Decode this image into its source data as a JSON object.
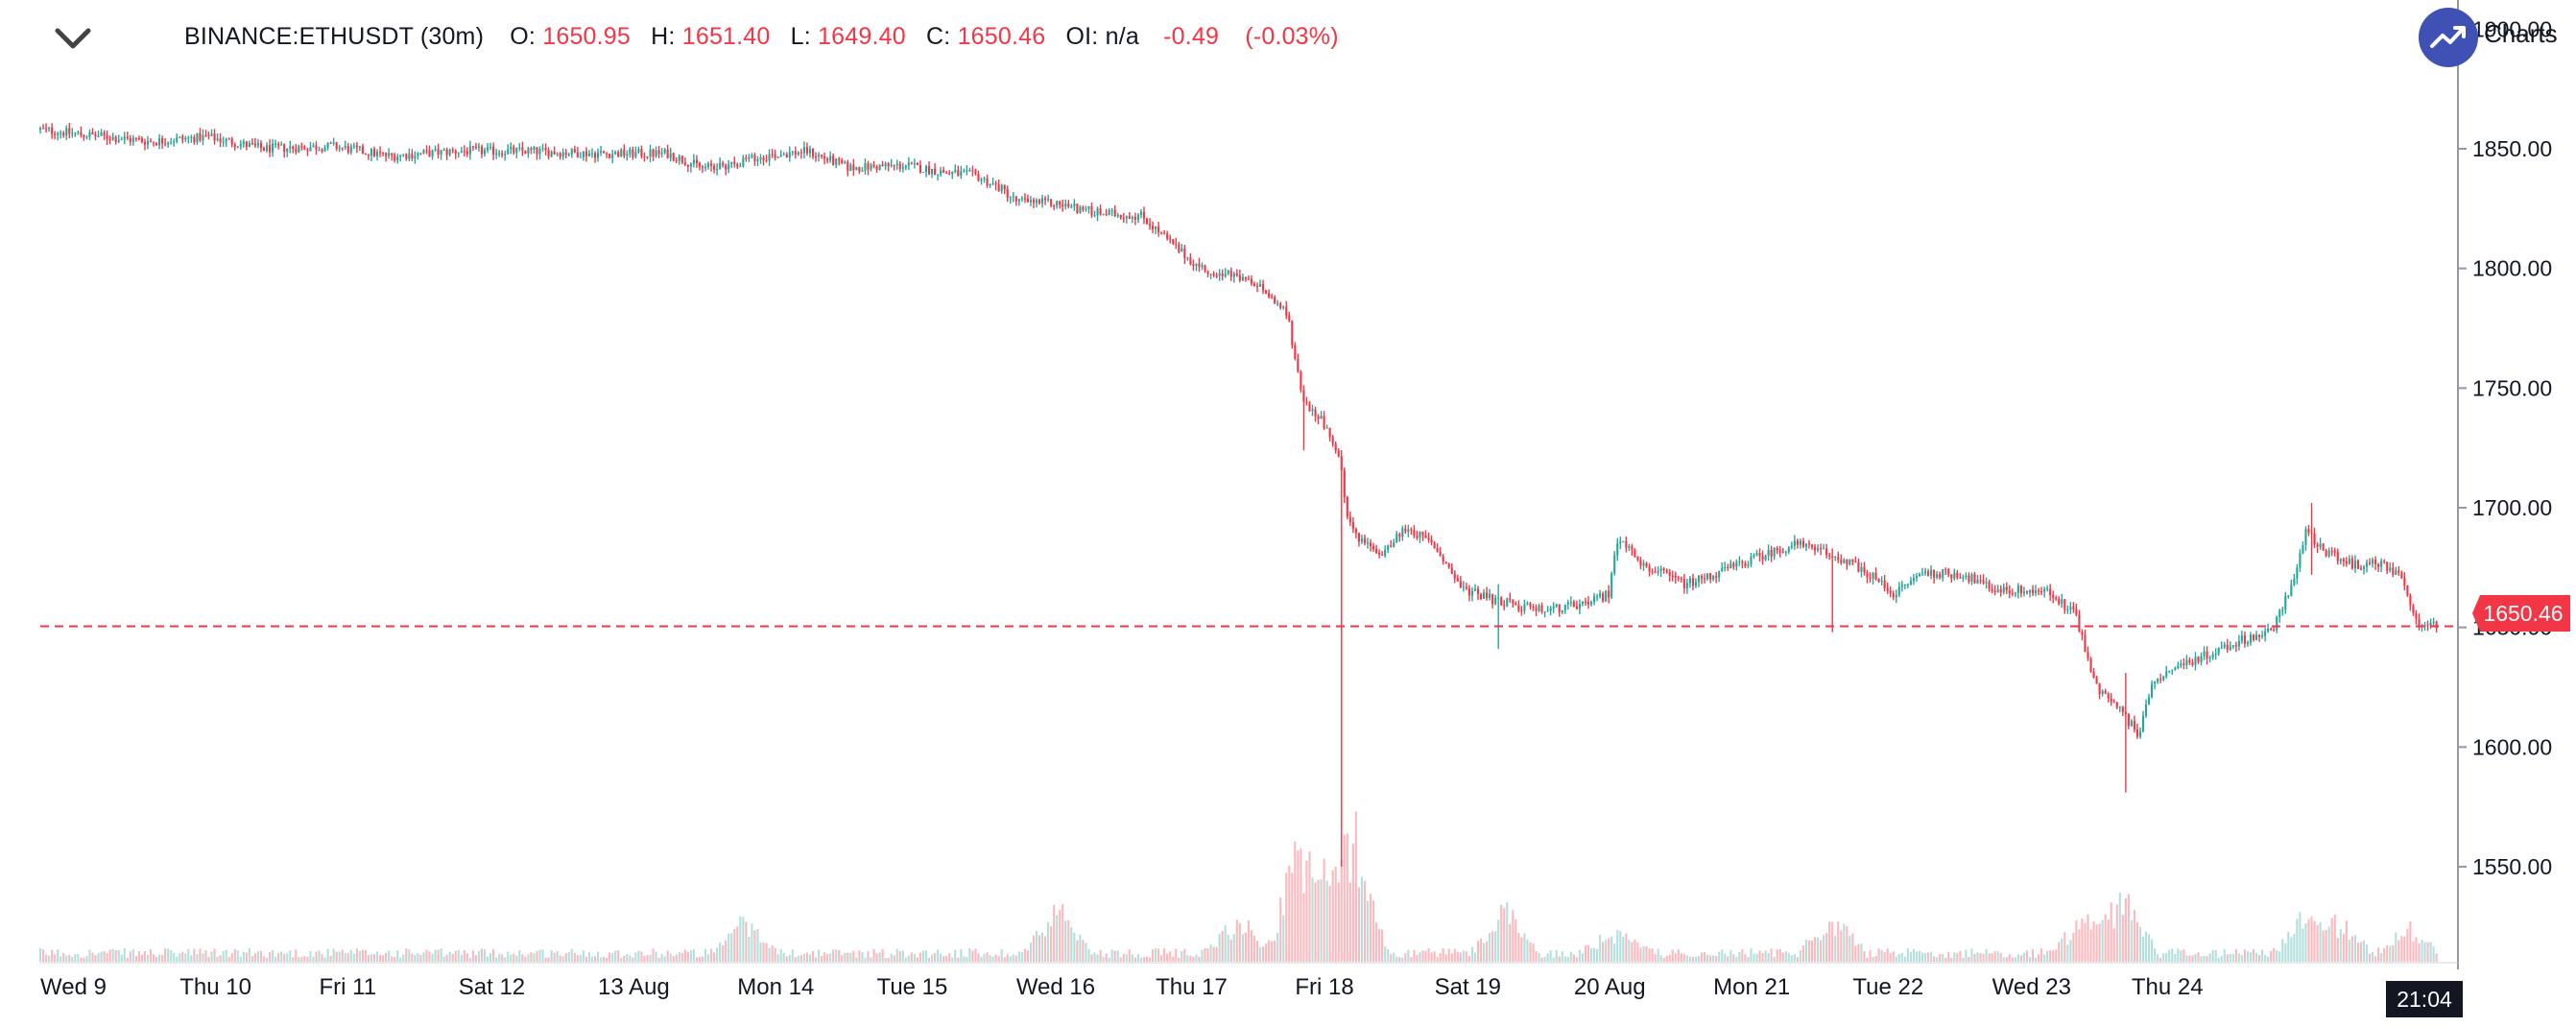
{
  "header": {
    "symbol": "BINANCE:ETHUSDT (30m)",
    "o_label": "O:",
    "o_value": "1650.95",
    "h_label": "H:",
    "h_value": "1651.40",
    "l_label": "L:",
    "l_value": "1649.40",
    "c_label": "C:",
    "c_value": "1650.46",
    "oi_label": "OI:",
    "oi_value": "n/a",
    "change": "-0.49",
    "change_pct": "(-0.03%)"
  },
  "brand": {
    "text": "Charts",
    "color": "#3f51b5"
  },
  "last_price_label": "1650.46",
  "crosshair_time_label": "21:04",
  "colors": {
    "up": "#26a69a",
    "down": "#f23645",
    "grid_axis": "#9598a1"
  },
  "chart_data": {
    "type": "candlestick",
    "title": "BINANCE:ETHUSDT (30m)",
    "ylim": [
      1510,
      1900
    ],
    "yticks": [
      1550,
      1600,
      1650,
      1700,
      1750,
      1800,
      1850,
      1900
    ],
    "ytick_labels": [
      "1550.00",
      "1600.00",
      "1650.00",
      "1700.00",
      "1750.00",
      "1800.00",
      "1850.00",
      "1900.00"
    ],
    "xticks": [
      "Wed 9",
      "Thu 10",
      "Fri 11",
      "Sat 12",
      "13 Aug",
      "Mon 14",
      "Tue 15",
      "Wed 16",
      "Thu 17",
      "Fri 18",
      "Sat 19",
      "20 Aug",
      "Mon 21",
      "Tue 22",
      "Wed 23",
      "Thu 24"
    ],
    "last_price": 1650.46,
    "price_path": [
      [
        0,
        1858
      ],
      [
        0.3,
        1856
      ],
      [
        0.8,
        1853
      ],
      [
        1.2,
        1855
      ],
      [
        1.6,
        1850
      ],
      [
        2.1,
        1851
      ],
      [
        2.5,
        1847
      ],
      [
        3.0,
        1849
      ],
      [
        3.5,
        1849
      ],
      [
        4.0,
        1848
      ],
      [
        4.5,
        1848
      ],
      [
        4.75,
        1842
      ],
      [
        4.9,
        1843
      ],
      [
        5.2,
        1847
      ],
      [
        5.5,
        1849
      ],
      [
        5.8,
        1842
      ],
      [
        6.2,
        1843
      ],
      [
        6.5,
        1840
      ],
      [
        6.7,
        1839
      ],
      [
        6.9,
        1833
      ],
      [
        7.0,
        1828
      ],
      [
        7.3,
        1827
      ],
      [
        7.6,
        1823
      ],
      [
        7.9,
        1822
      ],
      [
        8.1,
        1811
      ],
      [
        8.3,
        1801
      ],
      [
        8.6,
        1796
      ],
      [
        8.8,
        1790
      ],
      [
        8.95,
        1780
      ],
      [
        9.05,
        1745
      ],
      [
        9.2,
        1736
      ],
      [
        9.32,
        1720
      ],
      [
        9.38,
        1695
      ],
      [
        9.45,
        1688
      ],
      [
        9.6,
        1680
      ],
      [
        9.8,
        1692
      ],
      [
        10.0,
        1684
      ],
      [
        10.2,
        1666
      ],
      [
        10.4,
        1662
      ],
      [
        10.6,
        1659
      ],
      [
        10.8,
        1657
      ],
      [
        11.1,
        1660
      ],
      [
        11.25,
        1664
      ],
      [
        11.32,
        1688
      ],
      [
        11.5,
        1676
      ],
      [
        11.8,
        1668
      ],
      [
        12.0,
        1672
      ],
      [
        12.3,
        1679
      ],
      [
        12.6,
        1685
      ],
      [
        12.9,
        1679
      ],
      [
        13.1,
        1673
      ],
      [
        13.3,
        1664
      ],
      [
        13.5,
        1673
      ],
      [
        13.8,
        1672
      ],
      [
        14.0,
        1666
      ],
      [
        14.4,
        1665
      ],
      [
        14.6,
        1655
      ],
      [
        14.75,
        1625
      ],
      [
        14.95,
        1613
      ],
      [
        15.05,
        1605
      ],
      [
        15.15,
        1628
      ],
      [
        15.3,
        1633
      ],
      [
        15.6,
        1640
      ],
      [
        15.8,
        1645
      ],
      [
        16.0,
        1648
      ],
      [
        16.15,
        1668
      ],
      [
        16.25,
        1690
      ],
      [
        16.4,
        1681
      ],
      [
        16.6,
        1676
      ],
      [
        16.8,
        1677
      ],
      [
        16.95,
        1670
      ],
      [
        17.05,
        1652
      ],
      [
        17.2,
        1650.46
      ]
    ],
    "spikes": [
      {
        "t": 9.06,
        "high": 1749,
        "low": 1724
      },
      {
        "t": 9.34,
        "high": 1720,
        "low": 1550
      },
      {
        "t": 10.45,
        "high": 1668,
        "low": 1641
      },
      {
        "t": 12.85,
        "high": 1683,
        "low": 1648
      },
      {
        "t": 14.96,
        "high": 1631,
        "low": 1581
      },
      {
        "t": 16.3,
        "high": 1702,
        "low": 1672
      }
    ],
    "volume": {
      "baseline_note": "relative volume bars along bottom",
      "spike_times": [
        5.05,
        7.3,
        8.6,
        9.05,
        9.35,
        9.45,
        10.5,
        11.3,
        12.85,
        14.65,
        14.95,
        16.25,
        16.5,
        17.0
      ],
      "spike_heights": [
        0.3,
        0.4,
        0.3,
        1.0,
        0.75,
        0.6,
        0.4,
        0.2,
        0.3,
        0.35,
        0.5,
        0.35,
        0.25,
        0.2
      ]
    }
  }
}
